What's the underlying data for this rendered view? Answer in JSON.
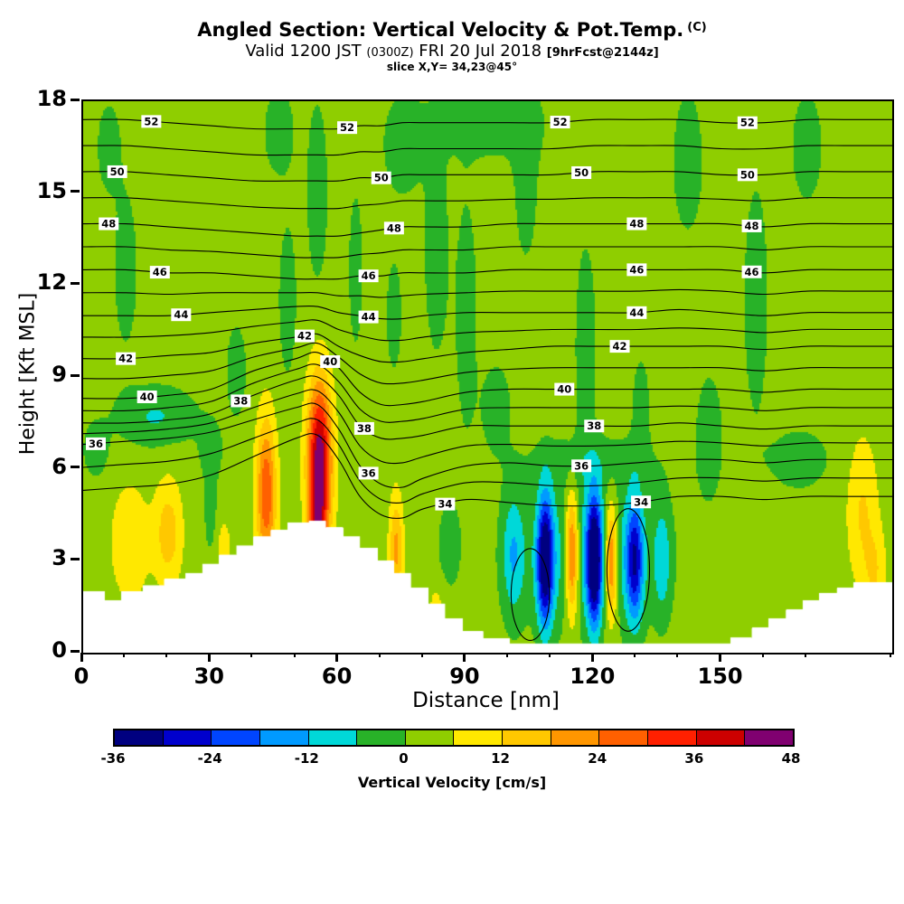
{
  "title": {
    "main": "Angled Section: Vertical Velocity & Pot.Temp.",
    "units": "(C)",
    "valid": "Valid 1200 JST",
    "valid_z": "(0300Z)",
    "valid_date": "FRI 20 Jul 2018",
    "fcst": "[9hrFcst@2144z]",
    "slice": "slice X,Y= 34,23@45°"
  },
  "axes": {
    "x": {
      "label": "Distance [nm]",
      "min": 0,
      "max": 190,
      "ticks": [
        0,
        30,
        60,
        90,
        120,
        150
      ],
      "minor_step": 10
    },
    "y": {
      "label": "Height [Kft MSL]",
      "min": 0,
      "max": 18,
      "ticks": [
        0,
        3,
        6,
        9,
        12,
        15,
        18
      ]
    }
  },
  "colorbar": {
    "label": "Vertical Velocity [cm/s]",
    "min": -36,
    "max": 48,
    "step": 6,
    "tick_labels": [
      -36,
      -24,
      -12,
      0,
      12,
      24,
      36,
      48
    ],
    "colors": [
      "#000080",
      "#0000cd",
      "#0045ff",
      "#009aff",
      "#00d8d8",
      "#28b228",
      "#8fce00",
      "#ffe800",
      "#ffc800",
      "#ff9600",
      "#ff6000",
      "#ff2000",
      "#cc0000",
      "#800070"
    ]
  },
  "chart_data": {
    "type": "heatmap",
    "description": "Vertical cross-section: filled contours of vertical velocity (cm/s) with potential temperature isentropes (C) and white terrain mask. Field reconstructed as background value plus gaussian features.",
    "x_unit": "nm",
    "y_unit": "kft MSL",
    "x_range": [
      0,
      190
    ],
    "y_range": [
      0,
      18
    ],
    "fill_levels": {
      "min": -36,
      "max": 48,
      "step": 6
    },
    "base_value": 2.5,
    "features": [
      {
        "x": 11,
        "y": 3.6,
        "rx": 4.5,
        "ry": 1.9,
        "amp": 9
      },
      {
        "x": 20,
        "y": 3.9,
        "rx": 3.2,
        "ry": 1.7,
        "amp": 13
      },
      {
        "x": 33,
        "y": 3.4,
        "rx": 2.0,
        "ry": 1.1,
        "amp": 6
      },
      {
        "x": 43,
        "y": 5.2,
        "rx": 2.3,
        "ry": 2.4,
        "amp": 27
      },
      {
        "x": 55.5,
        "y": 6.2,
        "rx": 2.8,
        "ry": 2.6,
        "amp": 45
      },
      {
        "x": 55,
        "y": 4.0,
        "rx": 2.0,
        "ry": 1.3,
        "amp": 18
      },
      {
        "x": 73.5,
        "y": 3.4,
        "rx": 1.6,
        "ry": 1.7,
        "amp": 17
      },
      {
        "x": 83,
        "y": 1.4,
        "rx": 2.0,
        "ry": 0.9,
        "amp": 6
      },
      {
        "x": 114.8,
        "y": 3.2,
        "rx": 1.6,
        "ry": 2.0,
        "amp": 31
      },
      {
        "x": 124,
        "y": 3.0,
        "rx": 1.5,
        "ry": 1.9,
        "amp": 29
      },
      {
        "x": 183,
        "y": 4.6,
        "rx": 3.6,
        "ry": 2.4,
        "amp": 10
      },
      {
        "x": 186,
        "y": 2.6,
        "rx": 2.6,
        "ry": 1.4,
        "amp": 8
      },
      {
        "x": 108.5,
        "y": 3.0,
        "rx": 1.9,
        "ry": 2.1,
        "amp": -38
      },
      {
        "x": 120,
        "y": 3.0,
        "rx": 1.7,
        "ry": 2.1,
        "amp": -38
      },
      {
        "x": 129.5,
        "y": 3.0,
        "rx": 2.0,
        "ry": 2.0,
        "amp": -28
      },
      {
        "x": 101,
        "y": 3.2,
        "rx": 2.6,
        "ry": 2.0,
        "amp": -13
      },
      {
        "x": 119,
        "y": 3.2,
        "rx": 15,
        "ry": 2.4,
        "amp": -11
      },
      {
        "x": 136,
        "y": 3.0,
        "rx": 2.0,
        "ry": 1.8,
        "amp": -11
      },
      {
        "x": 17,
        "y": 7.7,
        "rx": 9,
        "ry": 0.95,
        "amp": -9
      },
      {
        "x": 3,
        "y": 6.6,
        "rx": 3,
        "ry": 0.9,
        "amp": -6
      },
      {
        "x": 30,
        "y": 4.6,
        "rx": 1.5,
        "ry": 1.4,
        "amp": -6
      },
      {
        "x": 36,
        "y": 9.2,
        "rx": 2.5,
        "ry": 1.6,
        "amp": -5.5
      },
      {
        "x": 48,
        "y": 11.5,
        "rx": 2.2,
        "ry": 2.6,
        "amp": -5.5
      },
      {
        "x": 55,
        "y": 15,
        "rx": 2.6,
        "ry": 3.2,
        "amp": -5.5
      },
      {
        "x": 46,
        "y": 17,
        "rx": 4,
        "ry": 1.6,
        "amp": -5
      },
      {
        "x": 30,
        "y": 6.6,
        "rx": 3,
        "ry": 1.0,
        "amp": -5
      },
      {
        "x": 64,
        "y": 12.5,
        "rx": 1.8,
        "ry": 2.8,
        "amp": -5
      },
      {
        "x": 75,
        "y": 16.5,
        "rx": 5,
        "ry": 1.8,
        "amp": -5
      },
      {
        "x": 83,
        "y": 13,
        "rx": 3,
        "ry": 3.5,
        "amp": -5.5
      },
      {
        "x": 90,
        "y": 11,
        "rx": 2.6,
        "ry": 4.0,
        "amp": -5.5
      },
      {
        "x": 97,
        "y": 8,
        "rx": 3.6,
        "ry": 1.5,
        "amp": -5.5
      },
      {
        "x": 104,
        "y": 15.5,
        "rx": 3,
        "ry": 3,
        "amp": -5
      },
      {
        "x": 118,
        "y": 10,
        "rx": 2.6,
        "ry": 3.6,
        "amp": -5.5
      },
      {
        "x": 131,
        "y": 8,
        "rx": 2.2,
        "ry": 1.8,
        "amp": -5
      },
      {
        "x": 142,
        "y": 16,
        "rx": 4,
        "ry": 2.6,
        "amp": -5
      },
      {
        "x": 147,
        "y": 7,
        "rx": 3.4,
        "ry": 2.2,
        "amp": -5.5
      },
      {
        "x": 158,
        "y": 11.5,
        "rx": 3,
        "ry": 4,
        "amp": -5.5
      },
      {
        "x": 170,
        "y": 16.5,
        "rx": 4,
        "ry": 2,
        "amp": -5
      },
      {
        "x": 10,
        "y": 12.5,
        "rx": 3,
        "ry": 2.8,
        "amp": -5
      },
      {
        "x": 6,
        "y": 16.5,
        "rx": 3,
        "ry": 1.6,
        "amp": -5
      },
      {
        "x": 95,
        "y": 17.3,
        "rx": 14,
        "ry": 1.3,
        "amp": -5
      },
      {
        "x": 119,
        "y": 6.2,
        "rx": 15,
        "ry": 0.9,
        "amp": -4.5
      },
      {
        "x": 168,
        "y": 6.3,
        "rx": 8,
        "ry": 1.1,
        "amp": -5
      },
      {
        "x": 86,
        "y": 3.5,
        "rx": 3,
        "ry": 1.6,
        "amp": -5
      },
      {
        "x": 73,
        "y": 11,
        "rx": 2,
        "ry": 2,
        "amp": -5
      }
    ],
    "terrain_steps": [
      [
        0,
        5,
        2.0
      ],
      [
        5,
        9,
        1.7
      ],
      [
        9,
        14,
        2.0
      ],
      [
        14,
        19,
        2.2
      ],
      [
        19,
        24,
        2.4
      ],
      [
        24,
        28,
        2.6
      ],
      [
        28,
        32,
        2.9
      ],
      [
        32,
        36,
        3.2
      ],
      [
        36,
        40,
        3.5
      ],
      [
        40,
        44,
        3.8
      ],
      [
        44,
        48,
        4.0
      ],
      [
        48,
        53,
        4.25
      ],
      [
        53,
        57,
        4.3
      ],
      [
        57,
        61,
        4.1
      ],
      [
        61,
        65,
        3.8
      ],
      [
        65,
        69,
        3.4
      ],
      [
        69,
        73,
        3.0
      ],
      [
        73,
        77,
        2.6
      ],
      [
        77,
        81,
        2.1
      ],
      [
        81,
        85,
        1.6
      ],
      [
        85,
        89,
        1.1
      ],
      [
        89,
        94,
        0.7
      ],
      [
        94,
        100,
        0.45
      ],
      [
        100,
        152,
        0.3
      ],
      [
        152,
        157,
        0.5
      ],
      [
        157,
        161,
        0.8
      ],
      [
        161,
        165,
        1.1
      ],
      [
        165,
        169,
        1.4
      ],
      [
        169,
        173,
        1.7
      ],
      [
        173,
        177,
        1.95
      ],
      [
        177,
        181,
        2.1
      ],
      [
        181,
        190,
        2.3
      ]
    ],
    "isentropes": {
      "unit": "C",
      "labeled_interval": 2,
      "drawn_interval": 1,
      "x_samples": [
        0,
        10,
        20,
        30,
        40,
        50,
        55,
        60,
        65,
        70,
        75,
        80,
        90,
        100,
        110,
        120,
        130,
        140,
        150,
        160,
        170,
        180,
        190
      ],
      "lines": [
        {
          "theta": 34,
          "heights": [
            5.3,
            5.4,
            5.5,
            5.8,
            6.4,
            7.0,
            7.1,
            6.3,
            5.1,
            4.5,
            4.4,
            4.7,
            5.0,
            4.9,
            4.8,
            4.8,
            4.9,
            5.1,
            5.1,
            5.0,
            5.1,
            5.1,
            5.1
          ]
        },
        {
          "theta": 36,
          "heights": [
            6.8,
            6.9,
            7.0,
            7.2,
            7.6,
            8.0,
            8.1,
            7.3,
            6.1,
            5.5,
            5.4,
            5.7,
            6.1,
            6.2,
            6.1,
            6.1,
            6.2,
            6.3,
            6.3,
            6.2,
            6.3,
            6.3,
            6.3
          ]
        },
        {
          "theta": 38,
          "heights": [
            7.5,
            7.5,
            7.6,
            7.8,
            8.4,
            8.9,
            9.0,
            8.4,
            7.4,
            7.0,
            7.0,
            7.1,
            7.4,
            7.4,
            7.4,
            7.4,
            7.4,
            7.5,
            7.4,
            7.3,
            7.4,
            7.4,
            7.4
          ]
        },
        {
          "theta": 40,
          "heights": [
            8.3,
            8.3,
            8.4,
            8.6,
            9.2,
            9.6,
            9.8,
            9.3,
            8.5,
            8.1,
            8.1,
            8.2,
            8.5,
            8.6,
            8.6,
            8.6,
            8.6,
            8.6,
            8.6,
            8.5,
            8.6,
            8.6,
            8.6
          ]
        },
        {
          "theta": 42,
          "heights": [
            9.6,
            9.6,
            9.7,
            9.8,
            10.1,
            10.3,
            10.4,
            10.0,
            9.7,
            9.5,
            9.5,
            9.6,
            9.8,
            9.9,
            10.0,
            10.0,
            10.0,
            10.0,
            10.0,
            9.9,
            10.0,
            10.0,
            10.0
          ]
        },
        {
          "theta": 44,
          "heights": [
            11.0,
            11.0,
            11.0,
            11.1,
            11.2,
            11.3,
            11.3,
            11.1,
            11.0,
            10.9,
            10.9,
            11.0,
            11.1,
            11.1,
            11.1,
            11.1,
            11.1,
            11.2,
            11.1,
            11.0,
            11.1,
            11.1,
            11.1
          ]
        },
        {
          "theta": 46,
          "heights": [
            12.5,
            12.5,
            12.4,
            12.4,
            12.3,
            12.2,
            12.2,
            12.2,
            12.3,
            12.3,
            12.4,
            12.4,
            12.4,
            12.5,
            12.5,
            12.5,
            12.5,
            12.5,
            12.5,
            12.4,
            12.5,
            12.5,
            12.5
          ]
        },
        {
          "theta": 48,
          "heights": [
            14.0,
            14.0,
            13.9,
            13.8,
            13.7,
            13.6,
            13.6,
            13.6,
            13.7,
            13.8,
            13.9,
            13.9,
            13.9,
            14.0,
            14.0,
            14.0,
            14.0,
            14.0,
            14.0,
            13.9,
            14.0,
            14.0,
            14.0
          ]
        },
        {
          "theta": 50,
          "heights": [
            15.7,
            15.7,
            15.6,
            15.5,
            15.4,
            15.4,
            15.4,
            15.4,
            15.5,
            15.5,
            15.6,
            15.6,
            15.6,
            15.6,
            15.6,
            15.7,
            15.7,
            15.7,
            15.6,
            15.6,
            15.7,
            15.7,
            15.7
          ]
        },
        {
          "theta": 52,
          "heights": [
            17.4,
            17.4,
            17.3,
            17.2,
            17.1,
            17.1,
            17.1,
            17.1,
            17.2,
            17.2,
            17.3,
            17.3,
            17.3,
            17.3,
            17.3,
            17.4,
            17.4,
            17.4,
            17.3,
            17.3,
            17.4,
            17.4,
            17.4
          ]
        }
      ],
      "labels": [
        {
          "theta": 52,
          "x": 16
        },
        {
          "theta": 52,
          "x": 62
        },
        {
          "theta": 52,
          "x": 112
        },
        {
          "theta": 52,
          "x": 156
        },
        {
          "theta": 50,
          "x": 8
        },
        {
          "theta": 50,
          "x": 70
        },
        {
          "theta": 50,
          "x": 117
        },
        {
          "theta": 50,
          "x": 156
        },
        {
          "theta": 48,
          "x": 6
        },
        {
          "theta": 48,
          "x": 73
        },
        {
          "theta": 48,
          "x": 130
        },
        {
          "theta": 48,
          "x": 157
        },
        {
          "theta": 46,
          "x": 18
        },
        {
          "theta": 46,
          "x": 67
        },
        {
          "theta": 46,
          "x": 130
        },
        {
          "theta": 46,
          "x": 157
        },
        {
          "theta": 44,
          "x": 23
        },
        {
          "theta": 44,
          "x": 67
        },
        {
          "theta": 44,
          "x": 130
        },
        {
          "theta": 42,
          "x": 10
        },
        {
          "theta": 42,
          "x": 52
        },
        {
          "theta": 42,
          "x": 126
        },
        {
          "theta": 40,
          "x": 15
        },
        {
          "theta": 40,
          "x": 58
        },
        {
          "theta": 40,
          "x": 113
        },
        {
          "theta": 38,
          "x": 37
        },
        {
          "theta": 38,
          "x": 66
        },
        {
          "theta": 38,
          "x": 120
        },
        {
          "theta": 36,
          "x": 2
        },
        {
          "theta": 36,
          "x": 67
        },
        {
          "theta": 36,
          "x": 117
        },
        {
          "theta": 34,
          "x": 85
        },
        {
          "theta": 34,
          "x": 131
        }
      ],
      "closed_contours": [
        {
          "cx": 105,
          "cy": 1.9,
          "rx": 4.5,
          "ry": 1.5
        },
        {
          "cx": 128,
          "cy": 2.7,
          "rx": 5.0,
          "ry": 2.0
        }
      ]
    }
  }
}
